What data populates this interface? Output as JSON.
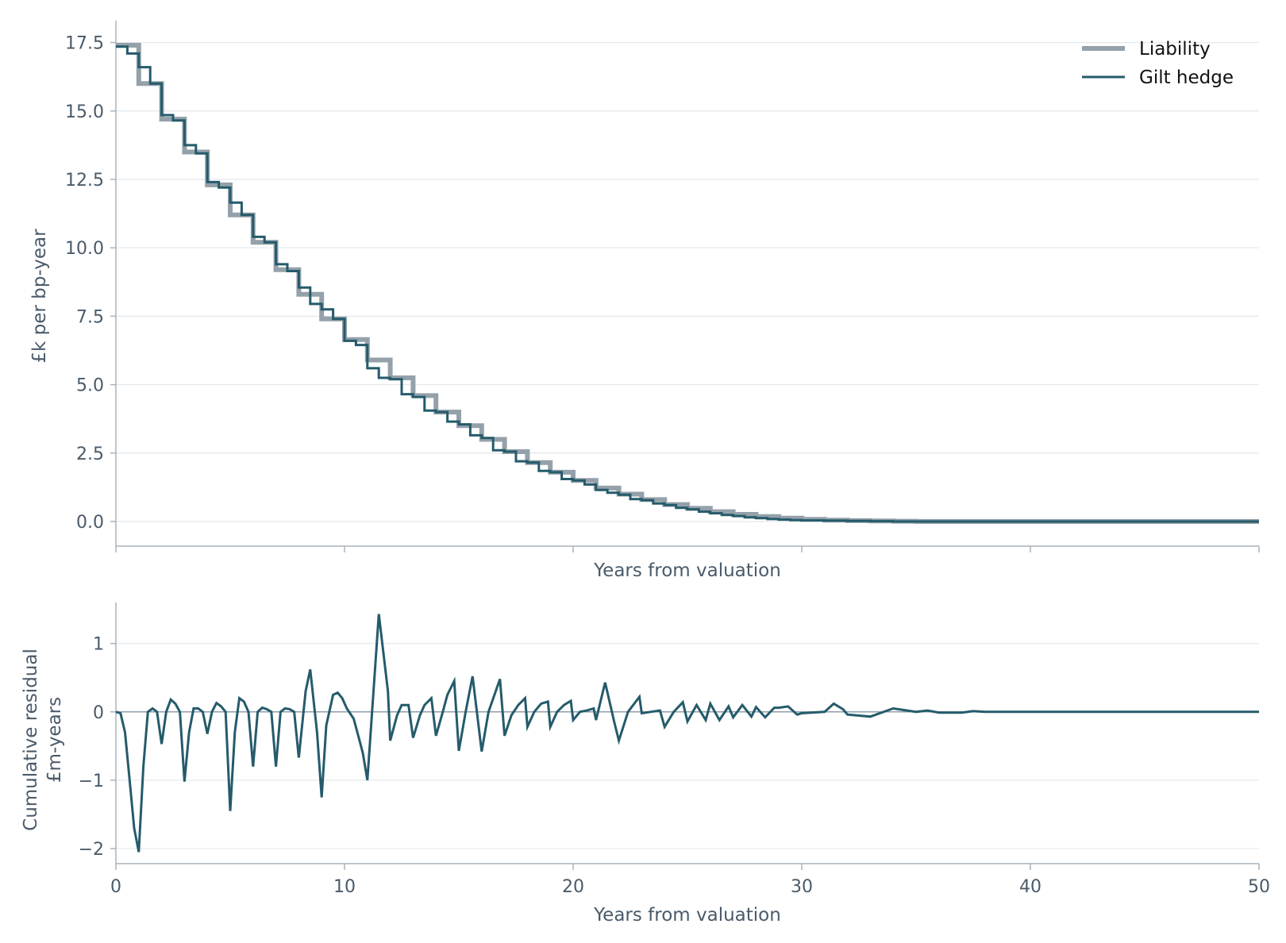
{
  "chart_data": [
    {
      "type": "line",
      "title": "",
      "xlabel": "Years from valuation",
      "ylabel": "£k per bp-year",
      "xlim": [
        0,
        50
      ],
      "ylim": [
        -0.9,
        18.3
      ],
      "xticks": [
        0,
        10,
        20,
        30,
        40,
        50
      ],
      "show_xtick_labels": false,
      "yticks": [
        0.0,
        2.5,
        5.0,
        7.5,
        10.0,
        12.5,
        15.0,
        17.5
      ],
      "ytick_labels": [
        "0.0",
        "2.5",
        "5.0",
        "7.5",
        "10.0",
        "12.5",
        "15.0",
        "17.5"
      ],
      "grid": "horizontal",
      "legend_position": "top-right",
      "series": [
        {
          "name": "Liability",
          "color": "#95a1aa",
          "style": "step",
          "x": [
            0,
            1,
            2,
            3,
            4,
            5,
            6,
            7,
            8,
            9,
            10,
            11,
            12,
            13,
            14,
            15,
            16,
            17,
            18,
            19,
            20,
            21,
            22,
            23,
            24,
            25,
            26,
            27,
            28,
            29,
            30,
            31,
            32,
            33,
            34,
            35,
            36,
            37,
            38,
            39,
            40,
            41,
            42,
            43,
            44,
            45,
            46,
            47,
            48,
            49,
            50
          ],
          "values": [
            17.4,
            16.0,
            14.7,
            13.5,
            12.3,
            11.2,
            10.2,
            9.2,
            8.3,
            7.4,
            6.65,
            5.9,
            5.25,
            4.6,
            4.0,
            3.5,
            3.0,
            2.55,
            2.15,
            1.8,
            1.5,
            1.22,
            1.0,
            0.8,
            0.62,
            0.48,
            0.36,
            0.26,
            0.18,
            0.12,
            0.08,
            0.05,
            0.03,
            0.02,
            0.01,
            0.0,
            0.0,
            0.0,
            0.0,
            0.0,
            0.0,
            0.0,
            0.0,
            0.0,
            0.0,
            0.0,
            0.0,
            0.0,
            0.0,
            0.0,
            0.0
          ]
        },
        {
          "name": "Gilt hedge",
          "color": "#255b6b",
          "style": "step",
          "x": [
            0,
            0.5,
            1,
            1.5,
            2,
            2.5,
            3,
            3.5,
            4,
            4.5,
            5,
            5.5,
            6,
            6.5,
            7,
            7.5,
            8,
            8.5,
            9,
            9.5,
            10,
            10.5,
            11,
            11.5,
            12,
            12.5,
            13,
            13.5,
            14,
            14.5,
            15,
            15.5,
            16,
            16.5,
            17,
            17.5,
            18,
            18.5,
            19,
            19.5,
            20,
            20.5,
            21,
            21.5,
            22,
            22.5,
            23,
            23.5,
            24,
            24.5,
            25,
            25.5,
            26,
            26.5,
            27,
            27.5,
            28,
            28.5,
            29,
            29.5,
            30,
            31,
            32,
            33,
            34,
            35,
            36,
            50
          ],
          "values": [
            17.35,
            17.1,
            16.6,
            16.0,
            14.85,
            14.65,
            13.75,
            13.45,
            12.4,
            12.2,
            11.65,
            11.2,
            10.4,
            10.2,
            9.4,
            9.15,
            8.55,
            7.95,
            7.75,
            7.4,
            6.6,
            6.45,
            5.6,
            5.25,
            5.2,
            4.65,
            4.55,
            4.05,
            4.0,
            3.65,
            3.55,
            3.15,
            3.05,
            2.6,
            2.55,
            2.2,
            2.15,
            1.85,
            1.8,
            1.55,
            1.5,
            1.35,
            1.15,
            1.05,
            0.98,
            0.82,
            0.78,
            0.66,
            0.6,
            0.5,
            0.44,
            0.36,
            0.3,
            0.24,
            0.2,
            0.15,
            0.12,
            0.09,
            0.07,
            0.05,
            0.04,
            0.03,
            0.02,
            0.01,
            0.0,
            0.0,
            0.0,
            0.0
          ]
        }
      ]
    },
    {
      "type": "line",
      "title": "",
      "xlabel": "Years from valuation",
      "ylabel": "Cumulative residual\n£m-years",
      "ylabel_lines": [
        "Cumulative residual",
        "£m-years"
      ],
      "xlim": [
        0,
        50
      ],
      "ylim": [
        -2.22,
        1.6
      ],
      "xticks": [
        0,
        10,
        20,
        30,
        40,
        50
      ],
      "xtick_labels": [
        "0",
        "10",
        "20",
        "30",
        "40",
        "50"
      ],
      "yticks": [
        -2,
        -1,
        0,
        1
      ],
      "ytick_labels": [
        "−2",
        "−1",
        "0",
        "1"
      ],
      "grid": "horizontal",
      "zero_line": true,
      "series": [
        {
          "color": "#255b6b",
          "x": [
            0,
            0.2,
            0.4,
            0.6,
            0.8,
            1.0,
            1.2,
            1.4,
            1.6,
            1.8,
            2.0,
            2.2,
            2.4,
            2.6,
            2.8,
            3.0,
            3.2,
            3.4,
            3.6,
            3.8,
            4.0,
            4.2,
            4.4,
            4.6,
            4.8,
            5.0,
            5.2,
            5.4,
            5.6,
            5.8,
            6.0,
            6.2,
            6.4,
            6.6,
            6.8,
            7.0,
            7.2,
            7.4,
            7.6,
            7.8,
            8.0,
            8.3,
            8.5,
            8.8,
            9.0,
            9.2,
            9.5,
            9.7,
            9.9,
            10.1,
            10.4,
            10.6,
            10.8,
            11.0,
            11.5,
            11.9,
            12.0,
            12.3,
            12.5,
            12.8,
            13.0,
            13.3,
            13.5,
            13.8,
            14.0,
            14.3,
            14.5,
            14.8,
            15.0,
            15.3,
            15.6,
            16.0,
            16.3,
            16.8,
            17.0,
            17.3,
            17.6,
            17.9,
            18.0,
            18.3,
            18.6,
            18.9,
            19.0,
            19.3,
            19.6,
            19.9,
            20.0,
            20.3,
            20.6,
            20.9,
            21.0,
            21.4,
            21.8,
            22.0,
            22.4,
            22.9,
            23.0,
            23.4,
            23.8,
            24.0,
            24.4,
            24.8,
            25.0,
            25.4,
            25.8,
            26.0,
            26.4,
            26.8,
            27.0,
            27.4,
            27.8,
            28.0,
            28.4,
            28.8,
            29.0,
            29.4,
            29.8,
            30.0,
            31.0,
            31.4,
            31.8,
            32.0,
            33.0,
            34.0,
            35.0,
            35.5,
            36.0,
            37.0,
            37.5,
            38.0,
            39.0,
            40.0,
            45.0,
            50.0
          ],
          "values": [
            0.0,
            -0.02,
            -0.3,
            -1.0,
            -1.7,
            -2.05,
            -0.8,
            0.0,
            0.05,
            0.0,
            -0.47,
            0.0,
            0.18,
            0.12,
            0.0,
            -1.02,
            -0.3,
            0.05,
            0.05,
            0.0,
            -0.32,
            0.0,
            0.13,
            0.08,
            0.0,
            -1.45,
            -0.3,
            0.2,
            0.15,
            0.0,
            -0.8,
            0.0,
            0.06,
            0.04,
            0.0,
            -0.8,
            0.0,
            0.05,
            0.04,
            0.0,
            -0.67,
            0.3,
            0.62,
            -0.3,
            -1.25,
            -0.2,
            0.25,
            0.28,
            0.2,
            0.05,
            -0.1,
            -0.35,
            -0.6,
            -1.0,
            1.43,
            0.3,
            -0.42,
            -0.05,
            0.1,
            0.1,
            -0.38,
            -0.05,
            0.1,
            0.2,
            -0.35,
            0.0,
            0.25,
            0.45,
            -0.57,
            0.0,
            0.52,
            -0.58,
            0.0,
            0.48,
            -0.35,
            -0.05,
            0.1,
            0.2,
            -0.22,
            0.0,
            0.12,
            0.15,
            -0.22,
            0.0,
            0.1,
            0.16,
            -0.12,
            0.0,
            0.02,
            0.05,
            -0.12,
            0.43,
            -0.15,
            -0.42,
            0.0,
            0.22,
            -0.02,
            0.0,
            0.02,
            -0.22,
            0.0,
            0.14,
            -0.14,
            0.1,
            -0.12,
            0.12,
            -0.12,
            0.08,
            -0.08,
            0.1,
            -0.07,
            0.07,
            -0.08,
            0.06,
            0.06,
            0.08,
            -0.04,
            -0.02,
            0.0,
            0.12,
            0.04,
            -0.04,
            -0.07,
            0.05,
            0.0,
            0.02,
            -0.01,
            -0.01,
            0.01,
            0.0,
            0.0,
            0.0,
            0.0,
            0.0
          ]
        }
      ]
    }
  ],
  "legend": [
    {
      "label": "Liability",
      "color": "#95a1aa"
    },
    {
      "label": "Gilt hedge",
      "color": "#255b6b"
    }
  ]
}
